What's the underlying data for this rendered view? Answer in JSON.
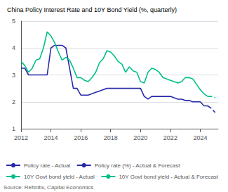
{
  "chart_data": {
    "type": "line",
    "title": "China Policy Interest Rate and 10Y Bond Yield (%, quarterly)",
    "source": "Source: Refinitiv, Capital Economics",
    "xlim": [
      2012.0,
      2025.2
    ],
    "xticks": [
      2012,
      2014,
      2016,
      2018,
      2020,
      2022,
      2024
    ],
    "ylim": [
      1,
      5
    ],
    "yticks": [
      1,
      2,
      3,
      4,
      5
    ],
    "grid": true,
    "legend": "lower left",
    "series": [
      {
        "name": "Policy rate - Actual",
        "color": "#2929a8",
        "line_style": "solid",
        "x": [
          2012.0,
          2012.25,
          2012.5,
          2012.75,
          2013.0,
          2013.25,
          2013.5,
          2013.75,
          2014.0,
          2014.25,
          2014.5,
          2014.75,
          2015.0,
          2015.25,
          2015.5,
          2015.75,
          2016.0,
          2016.25,
          2016.5,
          2016.75,
          2017.0,
          2017.25,
          2017.5,
          2017.75,
          2018.0,
          2018.25,
          2018.5,
          2018.75,
          2019.0,
          2019.25,
          2019.5,
          2019.75,
          2020.0,
          2020.25,
          2020.5,
          2020.75,
          2021.0,
          2021.25,
          2021.5,
          2021.75,
          2022.0,
          2022.25,
          2022.5,
          2022.75,
          2023.0,
          2023.25,
          2023.5,
          2023.75,
          2024.0,
          2024.25,
          2024.5
        ],
        "values": [
          3.25,
          3.25,
          3.0,
          3.0,
          3.0,
          3.0,
          3.0,
          3.0,
          4.0,
          4.1,
          4.1,
          4.1,
          4.0,
          3.25,
          2.5,
          2.5,
          2.25,
          2.25,
          2.25,
          2.3,
          2.35,
          2.4,
          2.45,
          2.5,
          2.5,
          2.5,
          2.5,
          2.5,
          2.5,
          2.5,
          2.5,
          2.5,
          2.5,
          2.2,
          2.1,
          2.2,
          2.2,
          2.2,
          2.2,
          2.2,
          2.2,
          2.15,
          2.1,
          2.1,
          2.05,
          2.05,
          2.0,
          2.0,
          2.0,
          1.85,
          1.85
        ]
      },
      {
        "name": "Policy rate (%) - Actual & Forecast",
        "color": "#2929a8",
        "line_style": "dashed",
        "x": [
          2024.5,
          2024.75,
          2025.0
        ],
        "values": [
          1.85,
          1.75,
          1.6
        ]
      },
      {
        "name": "10Y Govt bond yield - Actual",
        "color": "#00bf8a",
        "line_style": "solid",
        "x": [
          2012.0,
          2012.25,
          2012.5,
          2012.75,
          2013.0,
          2013.25,
          2013.5,
          2013.75,
          2014.0,
          2014.25,
          2014.5,
          2014.75,
          2015.0,
          2015.25,
          2015.5,
          2015.75,
          2016.0,
          2016.25,
          2016.5,
          2016.75,
          2017.0,
          2017.25,
          2017.5,
          2017.75,
          2018.0,
          2018.25,
          2018.5,
          2018.75,
          2019.0,
          2019.25,
          2019.5,
          2019.75,
          2020.0,
          2020.25,
          2020.5,
          2020.75,
          2021.0,
          2021.25,
          2021.5,
          2021.75,
          2022.0,
          2022.25,
          2022.5,
          2022.75,
          2023.0,
          2023.25,
          2023.5,
          2023.75,
          2024.0,
          2024.25,
          2024.5
        ],
        "values": [
          3.5,
          3.35,
          3.1,
          3.25,
          3.55,
          3.6,
          4.0,
          4.6,
          4.45,
          4.2,
          3.85,
          3.55,
          3.65,
          3.55,
          3.25,
          2.9,
          2.9,
          2.8,
          2.75,
          2.9,
          3.1,
          3.45,
          3.6,
          3.9,
          3.85,
          3.7,
          3.5,
          3.4,
          3.1,
          3.3,
          3.15,
          3.1,
          2.75,
          2.7,
          3.1,
          3.25,
          3.2,
          3.1,
          2.9,
          2.85,
          2.8,
          2.75,
          2.7,
          2.75,
          2.9,
          2.9,
          2.85,
          2.65,
          2.45,
          2.3,
          2.2
        ]
      },
      {
        "name": "10Y Govt bond yield - Actual & Forecast",
        "color": "#00bf8a",
        "line_style": "dashed",
        "x": [
          2024.5,
          2024.75,
          2025.0
        ],
        "values": [
          2.2,
          2.2,
          2.15
        ]
      }
    ]
  }
}
